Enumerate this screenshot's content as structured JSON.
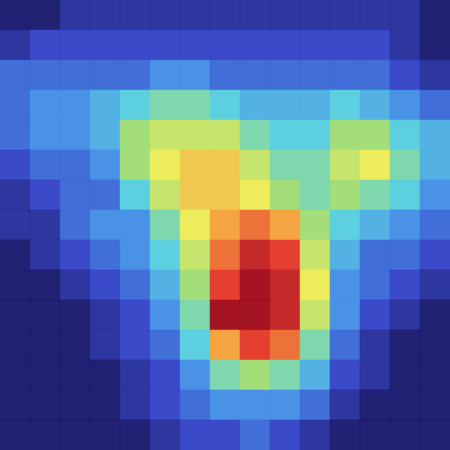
{
  "chart_data": {
    "type": "heatmap",
    "tick_labels": false,
    "cells": [
      [
        0.15,
        0.15,
        0.2,
        0.2,
        0.2,
        0.2,
        0.2,
        0.2,
        0.2,
        0.2,
        0.2,
        0.2,
        0.2,
        0.2,
        0.15
      ],
      [
        0.2,
        0.25,
        0.25,
        0.25,
        0.25,
        0.25,
        0.25,
        0.25,
        0.25,
        0.25,
        0.25,
        0.25,
        0.25,
        0.2,
        0.15
      ],
      [
        0.3,
        0.3,
        0.3,
        0.3,
        0.3,
        0.35,
        0.35,
        0.3,
        0.3,
        0.3,
        0.3,
        0.3,
        0.3,
        0.25,
        0.2
      ],
      [
        0.3,
        0.35,
        0.35,
        0.4,
        0.45,
        0.5,
        0.5,
        0.45,
        0.4,
        0.4,
        0.4,
        0.45,
        0.4,
        0.35,
        0.3
      ],
      [
        0.3,
        0.35,
        0.35,
        0.4,
        0.55,
        0.6,
        0.6,
        0.6,
        0.5,
        0.45,
        0.45,
        0.55,
        0.55,
        0.45,
        0.4
      ],
      [
        0.25,
        0.3,
        0.3,
        0.35,
        0.55,
        0.65,
        0.7,
        0.7,
        0.6,
        0.5,
        0.5,
        0.6,
        0.65,
        0.5,
        0.4
      ],
      [
        0.2,
        0.25,
        0.3,
        0.3,
        0.45,
        0.6,
        0.7,
        0.7,
        0.65,
        0.55,
        0.5,
        0.55,
        0.5,
        0.45,
        0.35
      ],
      [
        0.2,
        0.2,
        0.3,
        0.35,
        0.35,
        0.5,
        0.65,
        0.75,
        0.8,
        0.75,
        0.55,
        0.45,
        0.4,
        0.35,
        0.3
      ],
      [
        0.15,
        0.2,
        0.25,
        0.3,
        0.35,
        0.45,
        0.6,
        0.8,
        0.9,
        0.85,
        0.6,
        0.4,
        0.3,
        0.3,
        0.25
      ],
      [
        0.15,
        0.15,
        0.2,
        0.25,
        0.3,
        0.4,
        0.55,
        0.85,
        0.95,
        0.9,
        0.65,
        0.35,
        0.3,
        0.25,
        0.2
      ],
      [
        0.15,
        0.15,
        0.15,
        0.2,
        0.25,
        0.35,
        0.5,
        0.95,
        0.95,
        0.9,
        0.6,
        0.35,
        0.25,
        0.2,
        0.15
      ],
      [
        0.15,
        0.15,
        0.15,
        0.2,
        0.25,
        0.3,
        0.45,
        0.75,
        0.85,
        0.8,
        0.5,
        0.3,
        0.2,
        0.15,
        0.15
      ],
      [
        0.15,
        0.15,
        0.15,
        0.15,
        0.2,
        0.25,
        0.35,
        0.5,
        0.55,
        0.5,
        0.4,
        0.25,
        0.2,
        0.15,
        0.15
      ],
      [
        0.15,
        0.15,
        0.15,
        0.15,
        0.2,
        0.25,
        0.3,
        0.35,
        0.35,
        0.35,
        0.3,
        0.2,
        0.15,
        0.15,
        0.15
      ],
      [
        0.15,
        0.15,
        0.15,
        0.15,
        0.15,
        0.2,
        0.25,
        0.25,
        0.3,
        0.25,
        0.2,
        0.15,
        0.15,
        0.15,
        0.15
      ]
    ]
  }
}
